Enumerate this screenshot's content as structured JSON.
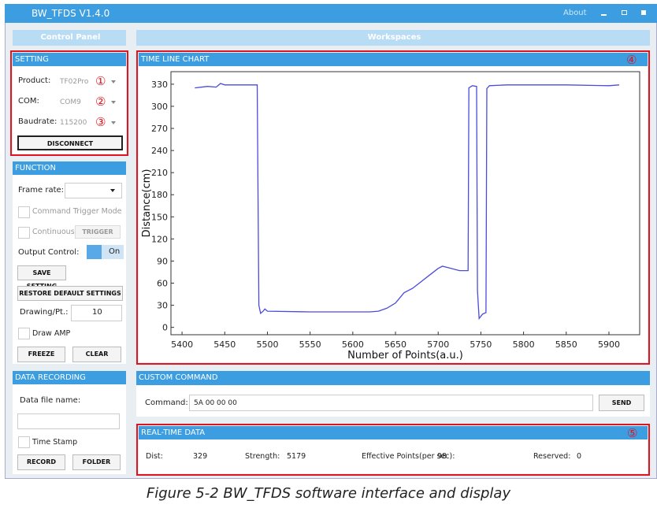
{
  "window": {
    "title": "BW_TFDS V1.4.0",
    "about": "About"
  },
  "control_panel": {
    "title": "Control Panel"
  },
  "workspaces": {
    "title": "Workspaces"
  },
  "setting": {
    "title": "SETTING",
    "product_label": "Product:",
    "product": "TF02Pro",
    "com_label": "COM:",
    "com": "COM9",
    "baud_label": "Baudrate:",
    "baud": "115200",
    "disconnect": "DISCONNECT",
    "markers": [
      "①",
      "②",
      "③"
    ]
  },
  "function": {
    "title": "FUNCTION",
    "frame_rate_label": "Frame rate:",
    "trigger_mode": "Command Trigger Mode",
    "continuous": "Continuous",
    "trigger": "TRIGGER",
    "output_label": "Output Control:",
    "output": "On",
    "save": "SAVE SETTING",
    "restore": "RESTORE DEFAULT SETTINGS",
    "drawing_label": "Drawing/Pt.:",
    "drawing": "10",
    "draw_amp": "Draw AMP",
    "freeze": "FREEZE",
    "clear": "CLEAR"
  },
  "data_recording": {
    "title": "DATA RECORDING",
    "file_label": "Data file name:",
    "time_stamp": "Time Stamp",
    "record": "RECORD",
    "folder": "FOLDER"
  },
  "chart_data": {
    "type": "line",
    "title": "TIME LINE CHART",
    "marker": "④",
    "xlabel": "Number of Points(a.u.)",
    "ylabel": "Distance(cm)",
    "x": [
      5415,
      5430,
      5440,
      5445,
      5450,
      5460,
      5488,
      5490,
      5492,
      5495,
      5497,
      5500,
      5550,
      5600,
      5620,
      5630,
      5640,
      5650,
      5655,
      5660,
      5670,
      5680,
      5690,
      5700,
      5705,
      5715,
      5725,
      5735,
      5736,
      5740,
      5745,
      5746,
      5748,
      5752,
      5756,
      5757,
      5760,
      5780,
      5850,
      5900,
      5912
    ],
    "series": [
      {
        "color": "#4b4bdc",
        "values": [
          325,
          327,
          326,
          331,
          329,
          329,
          329,
          30,
          19,
          22,
          25,
          22,
          21,
          21,
          21,
          22,
          26,
          33,
          40,
          47,
          53,
          62,
          71,
          80,
          83,
          80,
          77,
          77,
          325,
          328,
          327,
          50,
          12,
          18,
          20,
          324,
          328,
          329,
          329,
          328,
          329
        ]
      }
    ],
    "xlim": [
      5387,
      5936
    ],
    "ylim": [
      -10,
      347
    ],
    "xticks": [
      5400,
      5450,
      5500,
      5550,
      5600,
      5650,
      5700,
      5750,
      5800,
      5850,
      5900
    ],
    "yticks": [
      0,
      30,
      60,
      90,
      120,
      150,
      180,
      210,
      240,
      270,
      300,
      330
    ],
    "grid": false
  },
  "custom_command": {
    "title": "CUSTOM COMMAND",
    "label": "Command:",
    "value": "5A 00 00 00",
    "send": "SEND"
  },
  "realtime": {
    "title": "REAL-TIME DATA",
    "marker": "⑤",
    "dist_label": "Dist:",
    "dist": 329,
    "strength_label": "Strength:",
    "strength": 5179,
    "points_label": "Effective Points(per sec):",
    "points": 98,
    "reserved_label": "Reserved:",
    "reserved": 0
  },
  "caption": "Figure 5-2 BW_TFDS software interface and display"
}
